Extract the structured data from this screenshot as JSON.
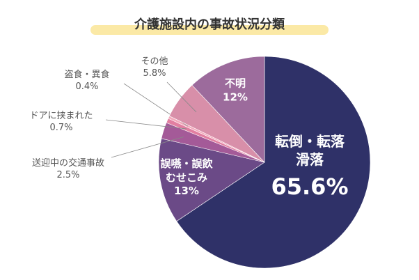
{
  "chart_data": {
    "type": "pie",
    "title": "介護施設内の事故状況分類",
    "categories": [
      "転倒・転落\n滑落",
      "誤嚥・誤飲\nむせこみ",
      "送迎中の交通事故",
      "ドアに挟まれた",
      "盗食・異食",
      "その他",
      "不明"
    ],
    "values": [
      65.6,
      13,
      2.5,
      0.7,
      0.4,
      5.8,
      12
    ],
    "value_labels": [
      "65.6%",
      "13%",
      "2.5%",
      "0.7%",
      "0.4%",
      "5.8%",
      "12%"
    ],
    "colors": [
      "#2f3168",
      "#6b4a87",
      "#a45a98",
      "#e27fa1",
      "#f2a9bb",
      "#d88fa9",
      "#9c6b9c"
    ]
  }
}
